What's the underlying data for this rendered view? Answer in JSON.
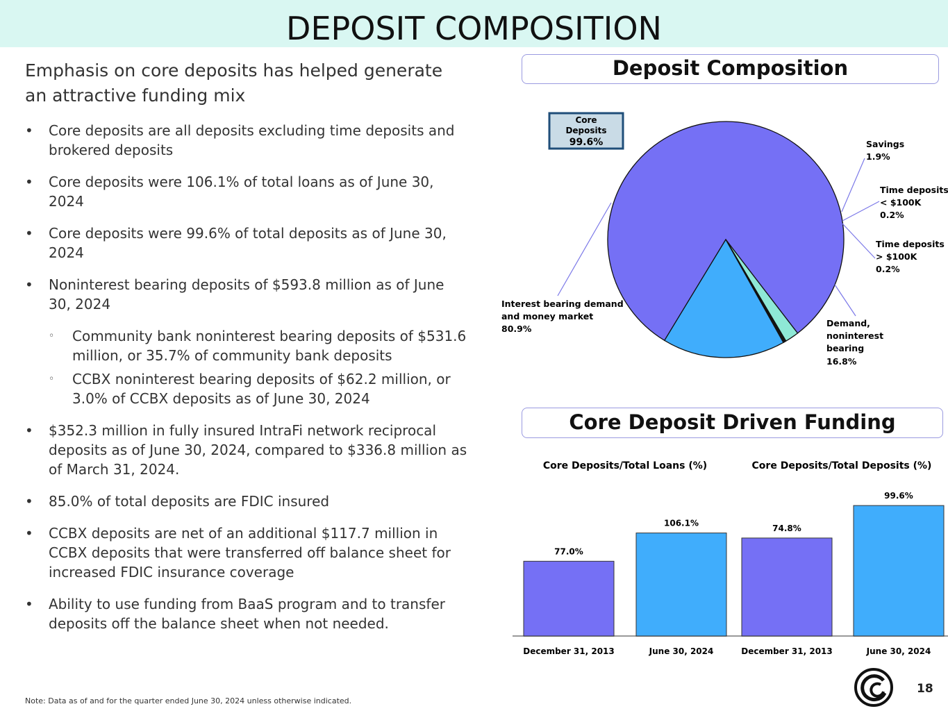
{
  "header": {
    "title": "DEPOSIT COMPOSITION"
  },
  "lead": "Emphasis on core deposits has helped generate an attractive funding mix",
  "bullets": [
    {
      "level": 1,
      "text": "Core deposits are all deposits excluding time deposits and brokered deposits"
    },
    {
      "level": 1,
      "text": "Core deposits were 106.1% of total loans as of June 30, 2024"
    },
    {
      "level": 1,
      "text": "Core deposits were 99.6% of total deposits as of June 30, 2024"
    },
    {
      "level": 1,
      "text": "Noninterest bearing deposits of $593.8 million as of June 30, 2024"
    },
    {
      "level": 2,
      "text": "Community bank noninterest bearing deposits of $531.6 million, or 35.7% of community bank deposits"
    },
    {
      "level": 2,
      "text": "CCBX noninterest bearing deposits of $62.2 million, or 3.0% of CCBX deposits as of June 30, 2024"
    },
    {
      "level": 1,
      "text": "$352.3 million in fully insured IntraFi network reciprocal deposits as of June 30, 2024, compared to $336.8 million as of March 31, 2024."
    },
    {
      "level": 1,
      "text": "85.0% of total deposits are FDIC insured"
    },
    {
      "level": 1,
      "text": "CCBX deposits are net of an additional $117.7 million in CCBX deposits that were transferred off balance sheet for increased FDIC insurance coverage"
    },
    {
      "level": 1,
      "text": "Ability to use funding from BaaS program and to transfer deposits off the balance sheet when not needed."
    }
  ],
  "bullet_symbols": {
    "level1": "•",
    "level2": "◦"
  },
  "pie_panel": {
    "title": "Deposit Composition",
    "core_box": {
      "line1": "Core",
      "line2": "Deposits",
      "value": "99.6%"
    }
  },
  "bar_panel": {
    "title": "Core Deposit Driven Funding"
  },
  "chart_data": [
    {
      "type": "pie",
      "title": "Deposit Composition",
      "slices": [
        {
          "label": "Interest bearing demand and money market",
          "value": 80.9,
          "display": "80.9%",
          "color": "#7570f5"
        },
        {
          "label": "Savings",
          "value": 1.9,
          "display": "1.9%",
          "color": "#8ee8d6"
        },
        {
          "label": "Time deposits < $100K",
          "value": 0.2,
          "display": "0.2%",
          "color": "#1a1a1a"
        },
        {
          "label": "Time deposits > $100K",
          "value": 0.2,
          "display": "0.2%",
          "color": "#1a1a1a"
        },
        {
          "label": "Demand, noninterest bearing",
          "value": 16.8,
          "display": "16.8%",
          "color": "#40adfc"
        }
      ]
    },
    {
      "type": "bar",
      "title": "Core Deposits/Total Loans (%)",
      "categories": [
        "December 31, 2013",
        "June 30, 2024"
      ],
      "values": [
        77.0,
        106.1
      ],
      "labels": [
        "77.0%",
        "106.1%"
      ],
      "colors": [
        "#7570f5",
        "#40adfc"
      ],
      "ylim": [
        0,
        143
      ]
    },
    {
      "type": "bar",
      "title": "Core Deposits/Total Deposits (%)",
      "categories": [
        "December 31, 2013",
        "June 30, 2024"
      ],
      "values": [
        74.8,
        99.6
      ],
      "labels": [
        "74.8%",
        "99.6%"
      ],
      "colors": [
        "#7570f5",
        "#40adfc"
      ],
      "ylim": [
        0,
        106
      ]
    }
  ],
  "footer": {
    "note": "Note: Data as of and for the quarter ended June 30, 2024 unless otherwise indicated.",
    "page": "18"
  }
}
